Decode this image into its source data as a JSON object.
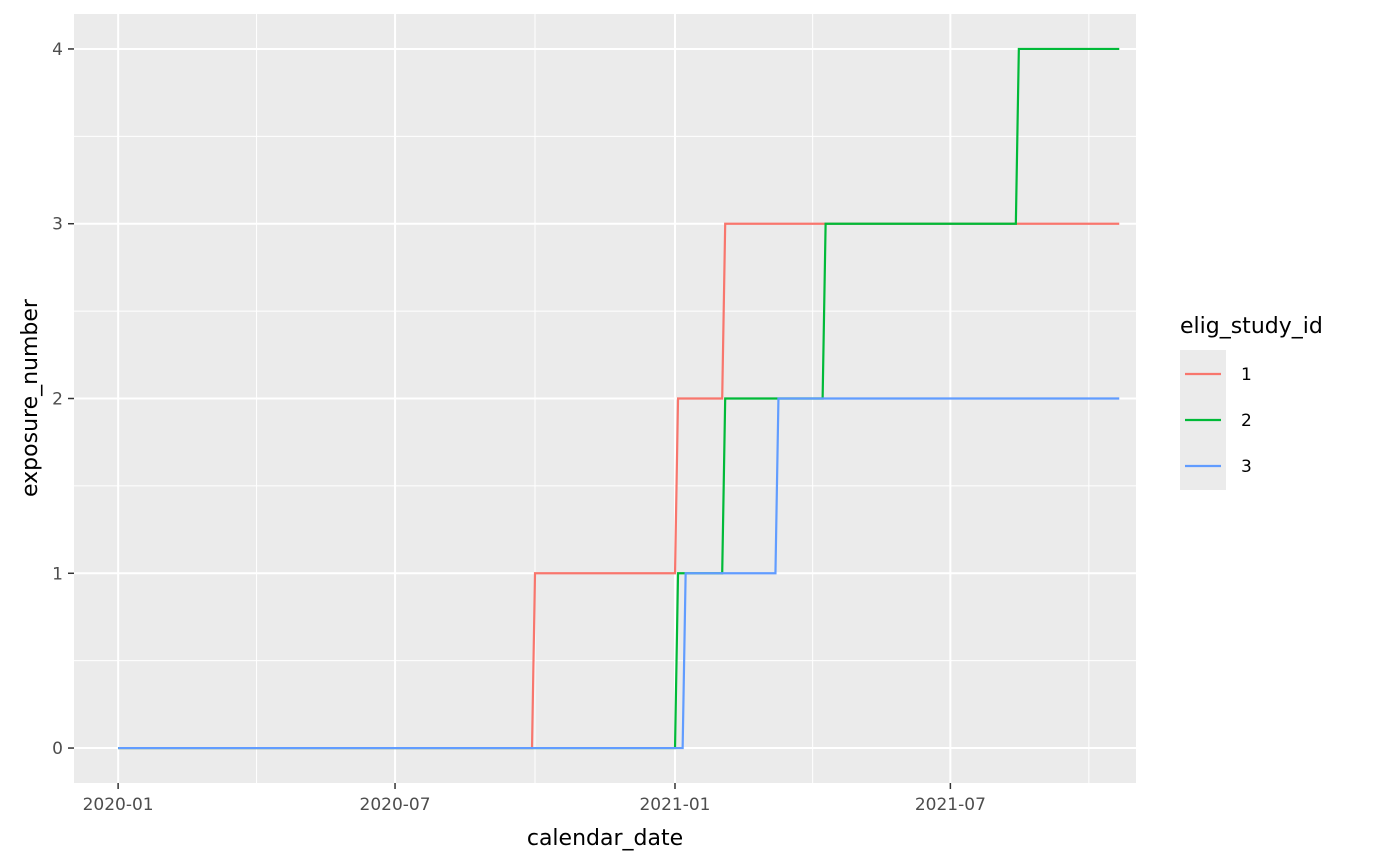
{
  "chart_data": {
    "type": "line",
    "step": true,
    "xlabel": "calendar_date",
    "ylabel": "exposure_number",
    "x_axis_type": "date",
    "xlim": [
      "2019-12-03",
      "2021-10-31"
    ],
    "ylim": [
      -0.2,
      4.2
    ],
    "x_ticks": [
      "2020-01-01",
      "2020-07-01",
      "2021-01-01",
      "2021-07-01"
    ],
    "x_tick_labels": [
      "2020-01",
      "2020-07",
      "2021-01",
      "2021-07"
    ],
    "y_ticks": [
      0,
      1,
      2,
      3,
      4
    ],
    "y_tick_labels": [
      "0",
      "1",
      "2",
      "3",
      "4"
    ],
    "grid": true,
    "panel_background": "#ebebeb",
    "grid_color": "#ffffff",
    "legend": {
      "title": "elig_study_id",
      "position": "right"
    },
    "series": [
      {
        "name": "1",
        "color": "#f8766d",
        "x": [
          "2020-01-01",
          "2020-10-01",
          "2021-01-03",
          "2021-02-03",
          "2021-10-20"
        ],
        "y": [
          0,
          1,
          2,
          3,
          3
        ]
      },
      {
        "name": "2",
        "color": "#00ba38",
        "x": [
          "2020-01-01",
          "2021-01-03",
          "2021-02-03",
          "2021-04-10",
          "2021-08-15",
          "2021-10-20"
        ],
        "y": [
          0,
          1,
          2,
          3,
          4,
          4
        ]
      },
      {
        "name": "3",
        "color": "#619cff",
        "x": [
          "2020-01-01",
          "2021-01-08",
          "2021-03-10",
          "2021-10-20"
        ],
        "y": [
          0,
          1,
          2,
          2
        ]
      }
    ]
  }
}
